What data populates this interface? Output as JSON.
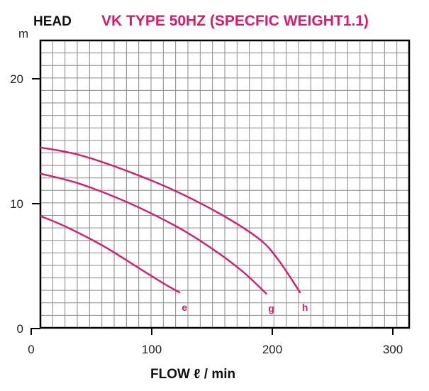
{
  "chart_data": {
    "type": "line",
    "title": "VK TYPE 50HZ (SPECFIC WEIGHT1.1)",
    "ylabel": "HEAD",
    "yunit": "m",
    "xlabel": "FLOW ℓ / min",
    "xlim": [
      0,
      300
    ],
    "ylim": [
      0,
      22
    ],
    "xticks": [
      "0",
      "100",
      "200",
      "300"
    ],
    "yticks": [
      "0",
      "10",
      "20"
    ],
    "grid": true,
    "series_color": "#d81b6e",
    "series": [
      {
        "name": "e",
        "x": [
          8,
          30,
          60,
          90,
          110,
          123
        ],
        "y": [
          9.0,
          8.1,
          6.6,
          4.8,
          3.6,
          2.9
        ]
      },
      {
        "name": "g",
        "x": [
          8,
          40,
          80,
          120,
          150,
          175,
          195
        ],
        "y": [
          12.4,
          11.6,
          10.1,
          8.2,
          6.4,
          4.6,
          2.8
        ]
      },
      {
        "name": "h",
        "x": [
          8,
          40,
          80,
          120,
          160,
          190,
          205,
          223
        ],
        "y": [
          14.5,
          13.9,
          12.6,
          11.0,
          9.0,
          7.1,
          5.5,
          2.9
        ]
      }
    ]
  }
}
